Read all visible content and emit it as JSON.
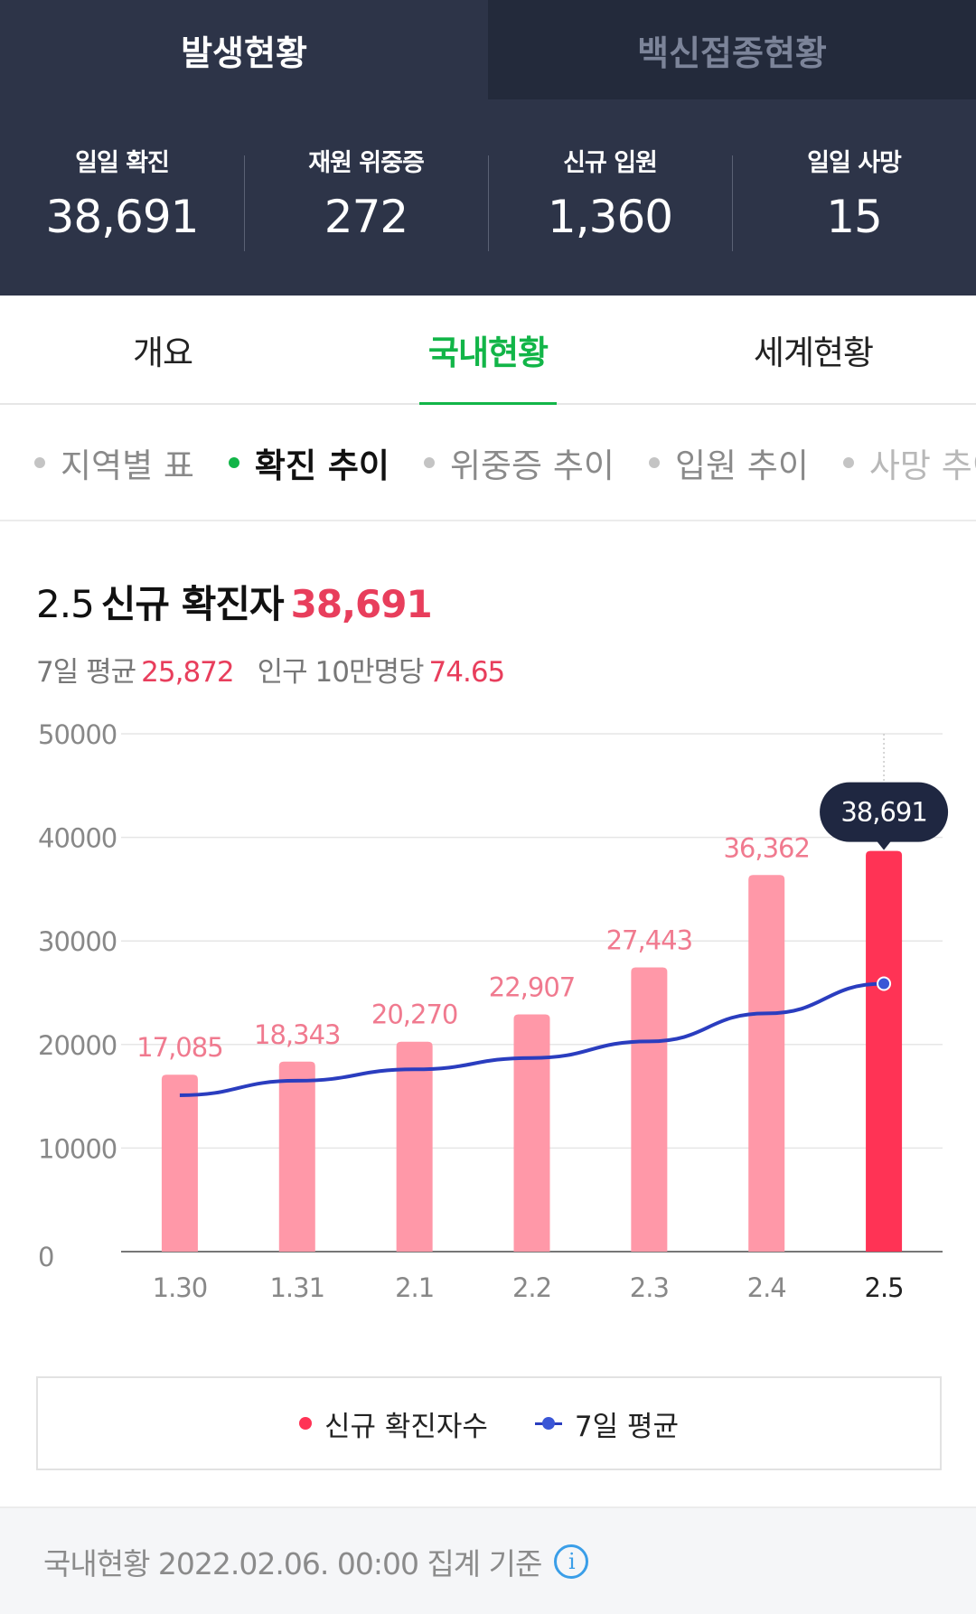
{
  "header": {
    "tabs": [
      {
        "label": "발생현황",
        "active": true
      },
      {
        "label": "백신접종현황",
        "active": false
      }
    ],
    "stats": [
      {
        "label": "일일 확진",
        "value": "38,691"
      },
      {
        "label": "재원 위중증",
        "value": "272"
      },
      {
        "label": "신규 입원",
        "value": "1,360"
      },
      {
        "label": "일일 사망",
        "value": "15"
      }
    ]
  },
  "main_tabs": [
    {
      "label": "개요"
    },
    {
      "label": "국내현황",
      "active": true
    },
    {
      "label": "세계현황"
    }
  ],
  "sub_tabs": [
    {
      "label": "지역별 표"
    },
    {
      "label": "확진 추이",
      "active": true
    },
    {
      "label": "위중증 추이"
    },
    {
      "label": "입원 추이"
    },
    {
      "label": "사망 추이"
    }
  ],
  "chart_head": {
    "date": "2.5",
    "label": "신규 확진자",
    "value": "38,691",
    "avg_label": "7일 평균",
    "avg_value": "25,872",
    "per_label": "인구 10만명당",
    "per_value": "74.65"
  },
  "chart_data": {
    "type": "bar",
    "categories": [
      "1.30",
      "1.31",
      "2.1",
      "2.2",
      "2.3",
      "2.4",
      "2.5"
    ],
    "series": [
      {
        "name": "신규 확진자수",
        "values": [
          17085,
          18343,
          20270,
          22907,
          27443,
          36362,
          38691
        ],
        "type": "bar"
      },
      {
        "name": "7일 평균",
        "values": [
          15100,
          16500,
          17600,
          18700,
          20300,
          23000,
          25872
        ],
        "type": "line"
      }
    ],
    "data_labels": [
      "17,085",
      "18,343",
      "20,270",
      "22,907",
      "27,443",
      "36,362",
      "38,691"
    ],
    "y_ticks": [
      "0",
      "10000",
      "20000",
      "30000",
      "40000",
      "50000"
    ],
    "ylim": [
      0,
      50000
    ],
    "highlight_index": 6,
    "tooltip": "38,691",
    "grid": true,
    "colors": {
      "bar": "#ff98a8",
      "bar_highlight": "#ff3355",
      "line": "#2a3dbf",
      "label": "#f07a8f",
      "tooltip_bg": "#1f2741"
    }
  },
  "legend": {
    "items": [
      {
        "label": "신규 확진자수"
      },
      {
        "label": "7일 평균"
      }
    ]
  },
  "footer": {
    "text": "국내현황 2022.02.06. 00:00 집계 기준",
    "icon": "info-icon"
  }
}
